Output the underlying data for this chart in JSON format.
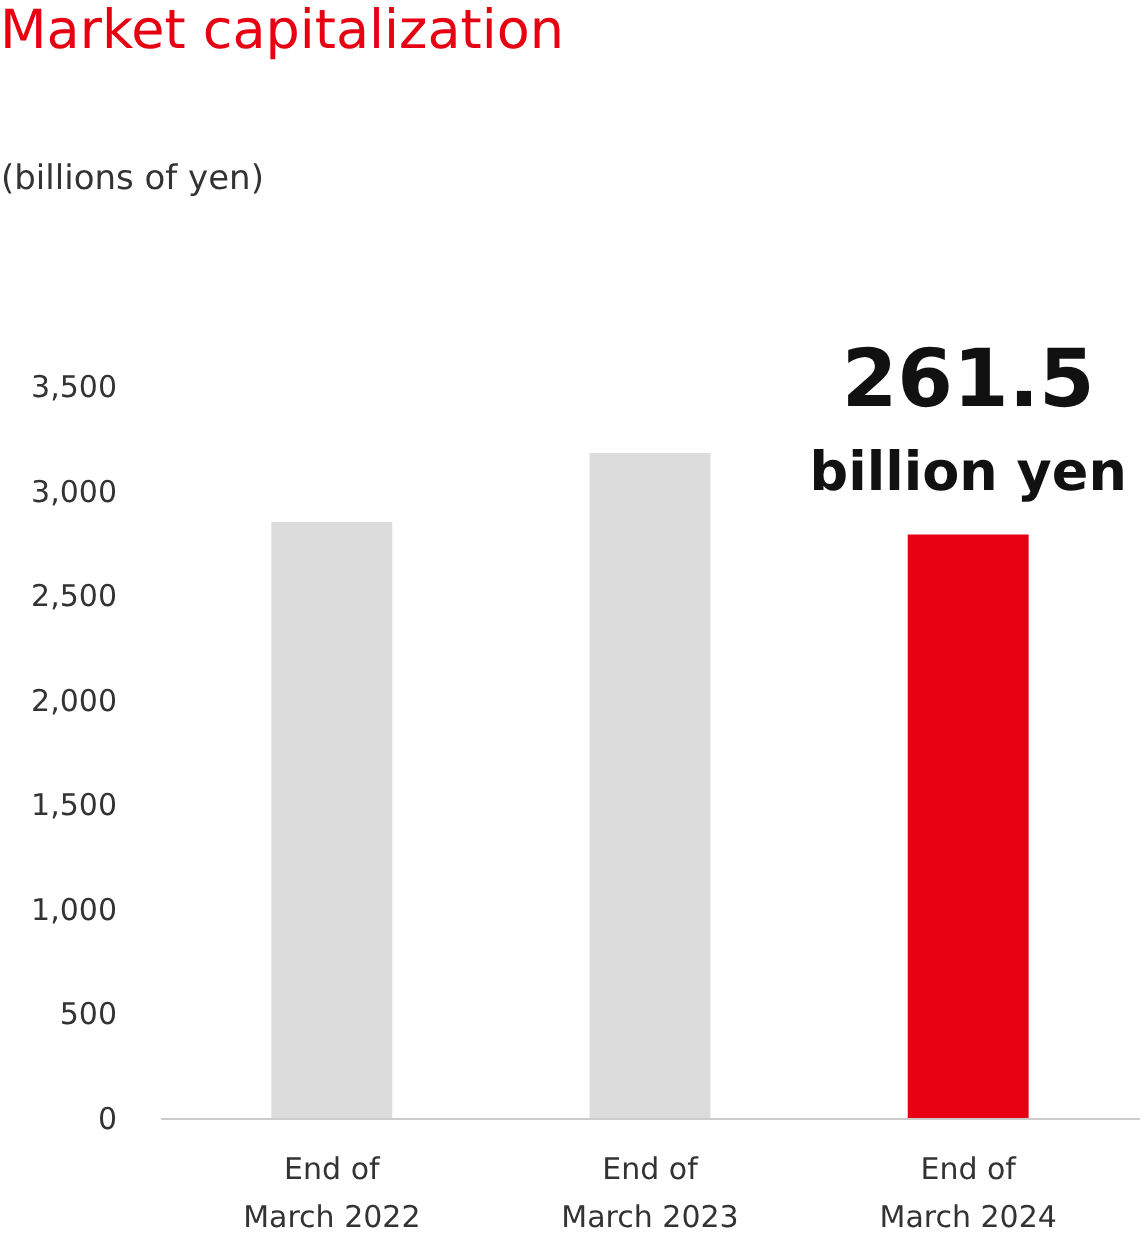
{
  "chart_data": {
    "type": "bar",
    "title": "Market capitalization",
    "ylabel": "(billions of yen)",
    "categories": [
      "End of March 2022",
      "End of March 2023",
      "End of March 2024"
    ],
    "values": [
      2850,
      3180,
      2790
    ],
    "colors": [
      "#dcdcdc",
      "#dcdcdc",
      "#e60012"
    ],
    "ylim": [
      0,
      3500
    ],
    "yticks": [
      0,
      500,
      {
        "value": 1000,
        "label": "1,000"
      },
      {
        "value": 1500,
        "label": "1,500"
      },
      {
        "value": 2000,
        "label": "2,000"
      },
      {
        "value": 2500,
        "label": "2,500"
      },
      {
        "value": 3000,
        "label": "3,000"
      },
      {
        "value": 3500,
        "label": "3,500"
      }
    ],
    "grid": false,
    "annotations": [
      "261.5 billion yen"
    ]
  }
}
